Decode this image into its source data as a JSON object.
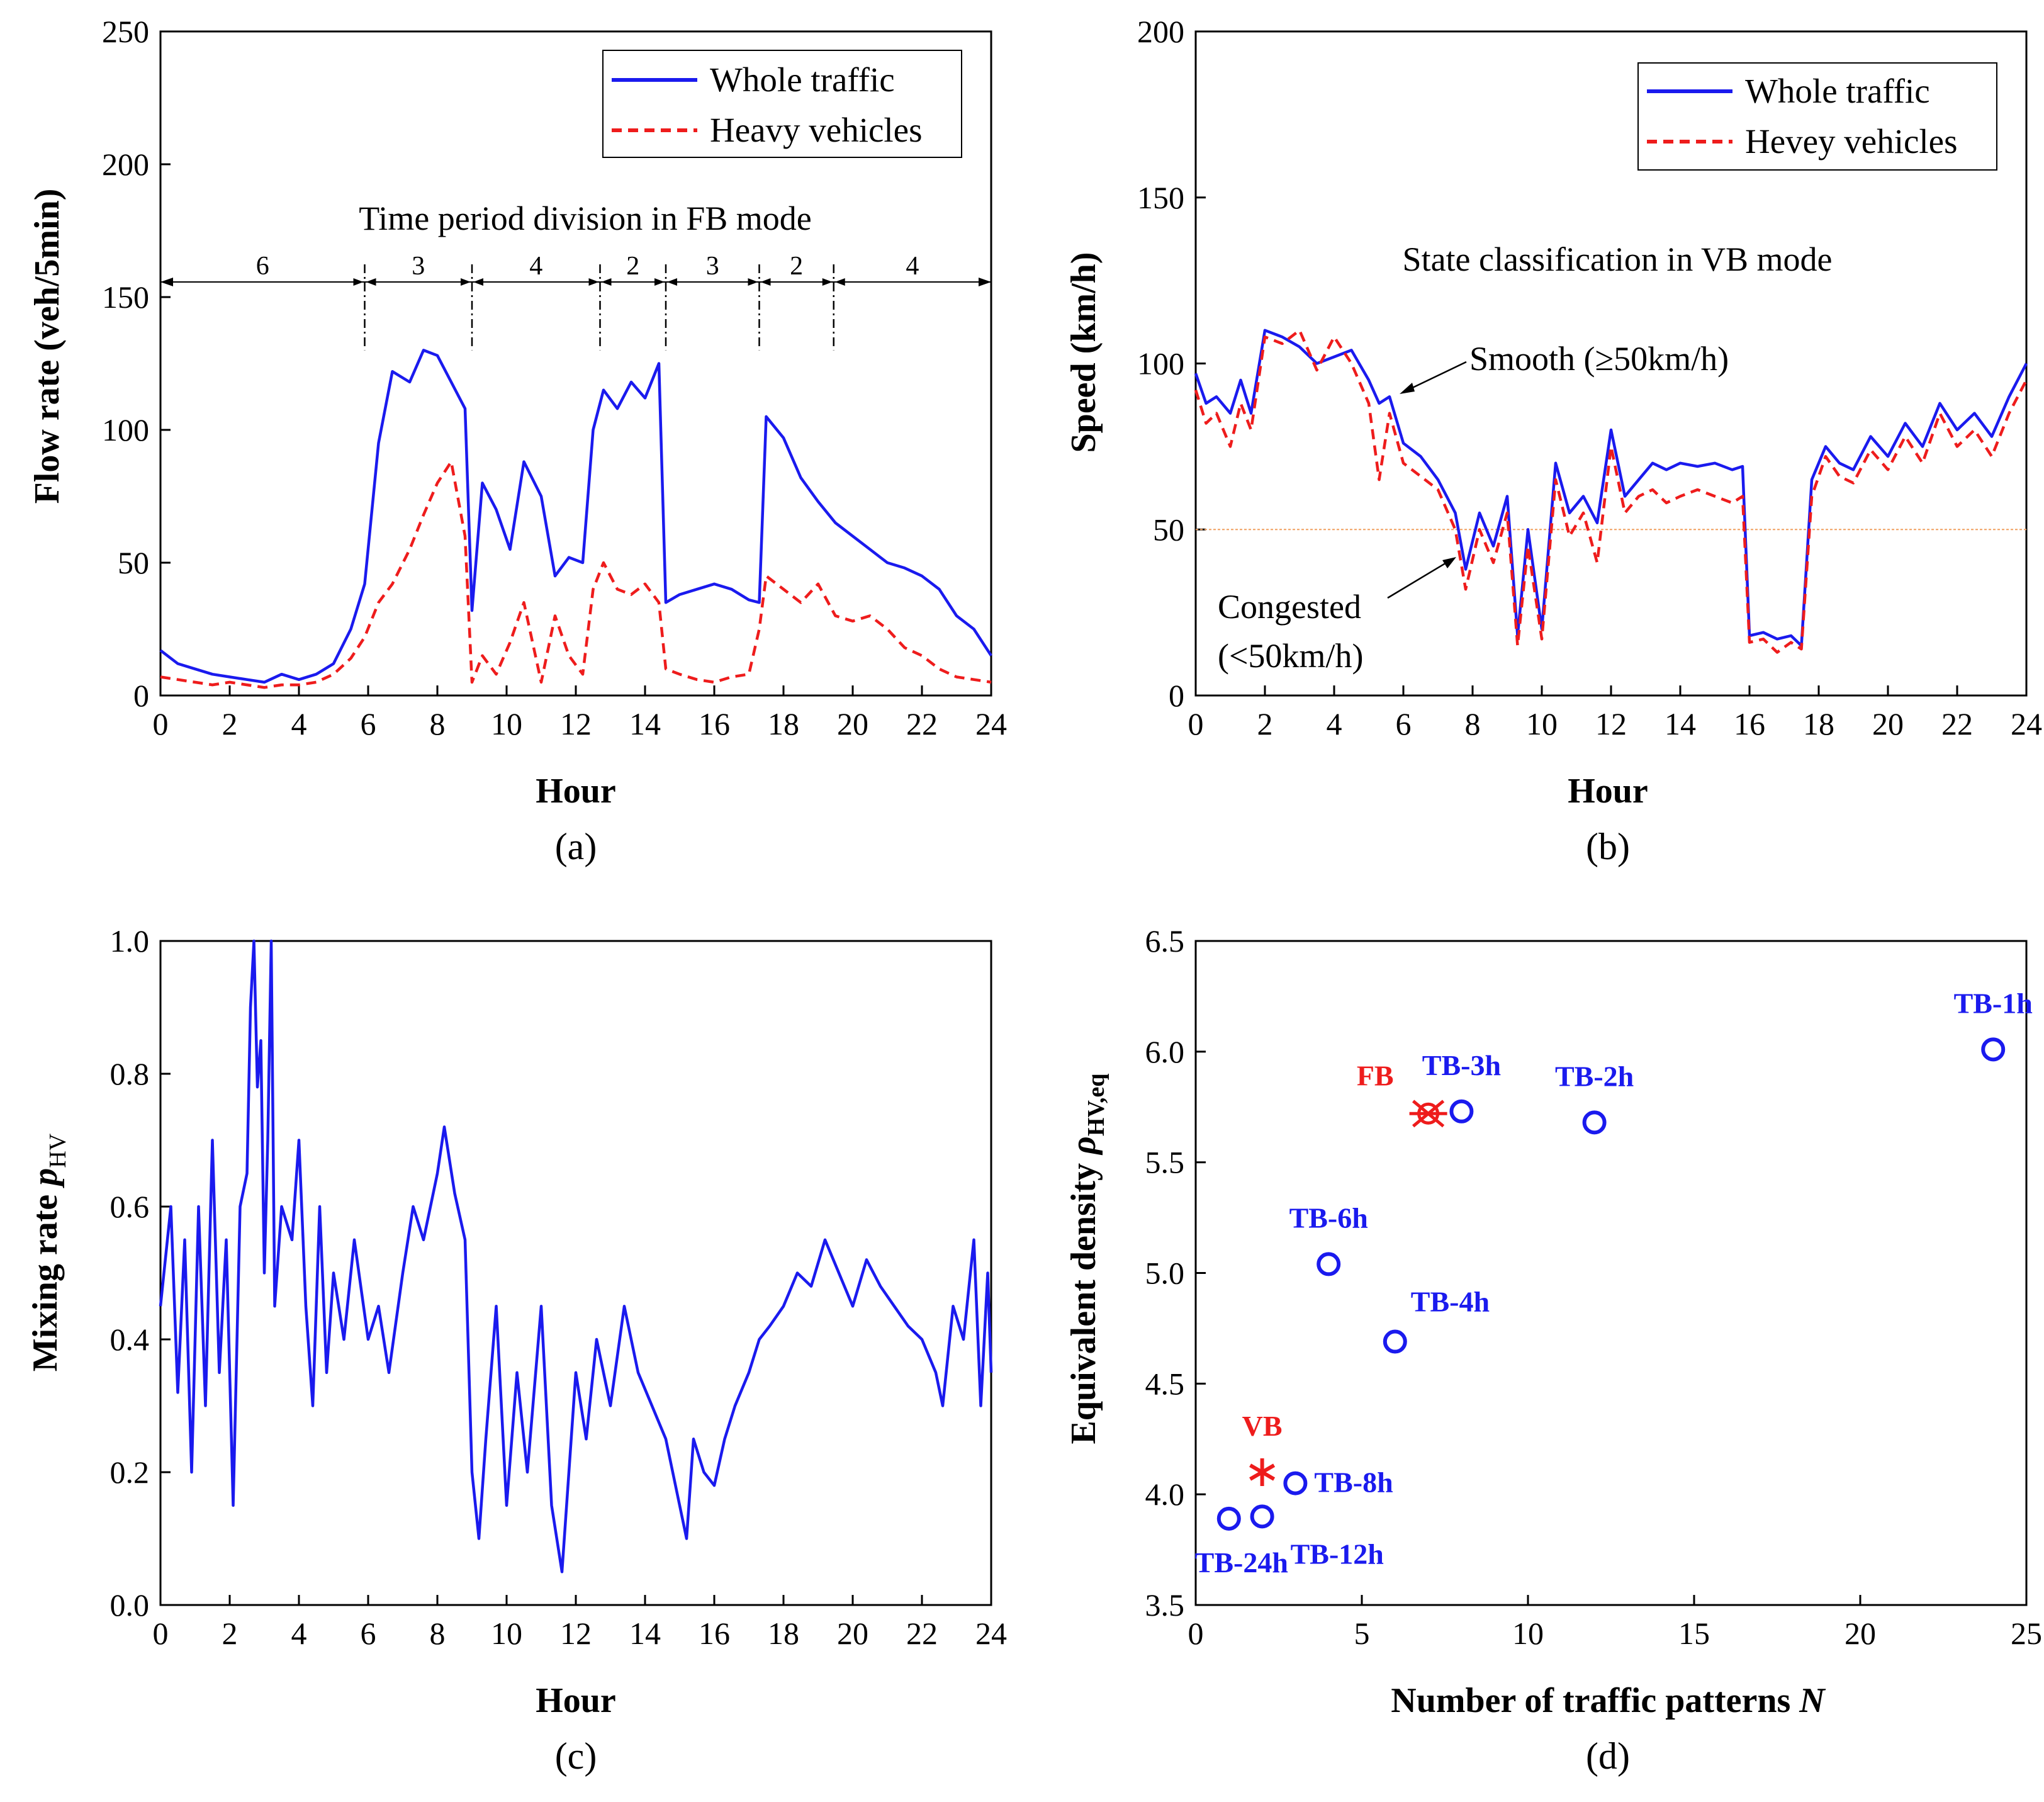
{
  "colors": {
    "blue": "#1a1aee",
    "red": "#ee1c1c",
    "threshold": "#f0a060",
    "axis": "#000000"
  },
  "chart_data": [
    {
      "id": "a",
      "type": "line",
      "caption": "(a)",
      "xlabel": "Hour",
      "ylabel": "Flow rate (veh/5min)",
      "xlim": [
        0,
        24
      ],
      "ylim": [
        0,
        250
      ],
      "xticks": [
        0,
        2,
        4,
        6,
        8,
        10,
        12,
        14,
        16,
        18,
        20,
        22,
        24
      ],
      "yticks": [
        0,
        50,
        100,
        150,
        200,
        250
      ],
      "legend": [
        "Whole traffic",
        "Heavy vehicles"
      ],
      "legend_position": "top-right",
      "annotation_title": "Time period division in FB mode",
      "period_boundaries_hour": [
        0,
        5.9,
        9.0,
        12.7,
        14.6,
        17.3,
        19.45,
        24
      ],
      "period_labels": [
        "6",
        "3",
        "4",
        "2",
        "3",
        "2",
        "4"
      ],
      "series": [
        {
          "name": "Whole traffic",
          "style": "solid",
          "x": [
            0,
            0.5,
            1,
            1.5,
            2,
            2.5,
            3,
            3.5,
            4,
            4.5,
            5,
            5.5,
            5.9,
            6.3,
            6.7,
            7.2,
            7.6,
            8.0,
            8.4,
            8.8,
            9.0,
            9.3,
            9.7,
            10.1,
            10.5,
            11.0,
            11.4,
            11.8,
            12.2,
            12.5,
            12.8,
            13.2,
            13.6,
            14.0,
            14.4,
            14.6,
            15.0,
            15.5,
            16.0,
            16.5,
            17.0,
            17.3,
            17.5,
            18.0,
            18.5,
            19.0,
            19.5,
            20.0,
            20.5,
            21.0,
            21.5,
            22.0,
            22.5,
            23.0,
            23.5,
            24
          ],
          "y": [
            17,
            12,
            10,
            8,
            7,
            6,
            5,
            8,
            6,
            8,
            12,
            25,
            42,
            95,
            122,
            118,
            130,
            128,
            118,
            108,
            32,
            80,
            70,
            55,
            88,
            75,
            45,
            52,
            50,
            100,
            115,
            108,
            118,
            112,
            125,
            35,
            38,
            40,
            42,
            40,
            36,
            35,
            105,
            97,
            82,
            73,
            65,
            60,
            55,
            50,
            48,
            45,
            40,
            30,
            25,
            15
          ]
        },
        {
          "name": "Heavy vehicles",
          "style": "dashed",
          "x": [
            0,
            0.5,
            1,
            1.5,
            2,
            2.5,
            3,
            3.5,
            4,
            4.5,
            5,
            5.5,
            5.9,
            6.3,
            6.7,
            7.2,
            7.6,
            8.0,
            8.4,
            8.8,
            9.0,
            9.3,
            9.7,
            10.1,
            10.5,
            11.0,
            11.4,
            11.8,
            12.2,
            12.5,
            12.8,
            13.2,
            13.6,
            14.0,
            14.4,
            14.6,
            15.0,
            15.5,
            16.0,
            16.5,
            17.0,
            17.3,
            17.5,
            18.0,
            18.5,
            19.0,
            19.5,
            20.0,
            20.5,
            21.0,
            21.5,
            22.0,
            22.5,
            23.0,
            23.5,
            24
          ],
          "y": [
            7,
            6,
            5,
            4,
            5,
            4,
            3,
            4,
            4,
            5,
            8,
            14,
            22,
            35,
            42,
            55,
            68,
            80,
            88,
            60,
            5,
            15,
            8,
            20,
            35,
            5,
            30,
            15,
            8,
            40,
            50,
            40,
            38,
            42,
            35,
            10,
            8,
            6,
            5,
            7,
            8,
            25,
            45,
            40,
            35,
            42,
            30,
            28,
            30,
            25,
            18,
            15,
            10,
            7,
            6,
            5
          ]
        }
      ]
    },
    {
      "id": "b",
      "type": "line",
      "caption": "(b)",
      "xlabel": "Hour",
      "ylabel": "Speed (km/h)",
      "xlim": [
        0,
        24
      ],
      "ylim": [
        0,
        200
      ],
      "xticks": [
        0,
        2,
        4,
        6,
        8,
        10,
        12,
        14,
        16,
        18,
        20,
        22,
        24
      ],
      "yticks": [
        0,
        50,
        100,
        150,
        200
      ],
      "legend": [
        "Whole traffic",
        "Hevey vehicles"
      ],
      "legend_position": "top-right",
      "annotation_title": "State classification in VB mode",
      "annotation_smooth": "Smooth (≥50km/h)",
      "annotation_congested_line1": "Congested",
      "annotation_congested_line2": "(<50km/h)",
      "threshold": 50,
      "series": [
        {
          "name": "Whole traffic",
          "style": "solid",
          "x": [
            0,
            0.3,
            0.6,
            1.0,
            1.3,
            1.6,
            2.0,
            2.5,
            3.0,
            3.5,
            4.0,
            4.5,
            5.0,
            5.3,
            5.6,
            6.0,
            6.5,
            7.0,
            7.5,
            7.8,
            8.2,
            8.6,
            9.0,
            9.3,
            9.6,
            10.0,
            10.4,
            10.8,
            11.2,
            11.6,
            12.0,
            12.4,
            12.8,
            13.2,
            13.6,
            14.0,
            14.5,
            15.0,
            15.5,
            15.8,
            16.0,
            16.4,
            16.8,
            17.2,
            17.5,
            17.8,
            18.2,
            18.6,
            19.0,
            19.5,
            20.0,
            20.5,
            21.0,
            21.5,
            22.0,
            22.5,
            23.0,
            23.5,
            24
          ],
          "y": [
            97,
            88,
            90,
            85,
            95,
            85,
            110,
            108,
            105,
            100,
            102,
            104,
            95,
            88,
            90,
            76,
            72,
            65,
            55,
            38,
            55,
            45,
            60,
            18,
            50,
            20,
            70,
            55,
            60,
            52,
            80,
            60,
            65,
            70,
            68,
            70,
            69,
            70,
            68,
            69,
            18,
            19,
            17,
            18,
            15,
            65,
            75,
            70,
            68,
            78,
            72,
            82,
            75,
            88,
            80,
            85,
            78,
            90,
            100
          ]
        },
        {
          "name": "Hevey vehicles",
          "style": "dashed",
          "x": [
            0,
            0.3,
            0.6,
            1.0,
            1.3,
            1.6,
            2.0,
            2.5,
            3.0,
            3.5,
            4.0,
            4.5,
            5.0,
            5.3,
            5.6,
            6.0,
            6.5,
            7.0,
            7.5,
            7.8,
            8.2,
            8.6,
            9.0,
            9.3,
            9.6,
            10.0,
            10.4,
            10.8,
            11.2,
            11.6,
            12.0,
            12.4,
            12.8,
            13.2,
            13.6,
            14.0,
            14.5,
            15.0,
            15.5,
            15.8,
            16.0,
            16.4,
            16.8,
            17.2,
            17.5,
            17.8,
            18.2,
            18.6,
            19.0,
            19.5,
            20.0,
            20.5,
            21.0,
            21.5,
            22.0,
            22.5,
            23.0,
            23.5,
            24
          ],
          "y": [
            92,
            82,
            85,
            75,
            88,
            80,
            108,
            106,
            110,
            98,
            108,
            100,
            88,
            65,
            85,
            70,
            66,
            62,
            50,
            32,
            50,
            40,
            55,
            15,
            45,
            17,
            65,
            48,
            55,
            40,
            75,
            55,
            60,
            62,
            58,
            60,
            62,
            60,
            58,
            60,
            16,
            17,
            13,
            16,
            14,
            60,
            72,
            66,
            64,
            74,
            68,
            78,
            70,
            85,
            75,
            80,
            72,
            85,
            95
          ]
        }
      ]
    },
    {
      "id": "c",
      "type": "line",
      "caption": "(c)",
      "xlabel": "Hour",
      "ylabel_main": "Mixing rate ",
      "ylabel_var": "p",
      "ylabel_sub": "HV",
      "xlim": [
        0,
        24
      ],
      "ylim": [
        0,
        1.0
      ],
      "xticks": [
        0,
        2,
        4,
        6,
        8,
        10,
        12,
        14,
        16,
        18,
        20,
        22,
        24
      ],
      "yticks": [
        0.0,
        0.2,
        0.4,
        0.6,
        0.8,
        1.0
      ],
      "ytick_labels": [
        "0.0",
        "0.2",
        "0.4",
        "0.6",
        "0.8",
        "1.0"
      ],
      "series": [
        {
          "name": "Mixing rate",
          "style": "solid",
          "x": [
            0,
            0.3,
            0.5,
            0.7,
            0.9,
            1.1,
            1.3,
            1.5,
            1.7,
            1.9,
            2.1,
            2.3,
            2.5,
            2.6,
            2.7,
            2.8,
            2.9,
            3.0,
            3.1,
            3.2,
            3.3,
            3.5,
            3.8,
            4.0,
            4.2,
            4.4,
            4.6,
            4.8,
            5.0,
            5.3,
            5.6,
            6.0,
            6.3,
            6.6,
            7.0,
            7.3,
            7.6,
            8.0,
            8.2,
            8.5,
            8.8,
            9.0,
            9.2,
            9.4,
            9.7,
            10.0,
            10.3,
            10.6,
            11.0,
            11.3,
            11.6,
            11.8,
            12.0,
            12.3,
            12.6,
            13.0,
            13.4,
            13.8,
            14.2,
            14.6,
            15.0,
            15.2,
            15.4,
            15.7,
            16.0,
            16.3,
            16.6,
            17.0,
            17.3,
            17.6,
            18.0,
            18.4,
            18.8,
            19.2,
            19.6,
            20.0,
            20.4,
            20.8,
            21.2,
            21.6,
            22.0,
            22.4,
            22.6,
            22.9,
            23.2,
            23.5,
            23.7,
            23.9,
            24
          ],
          "y": [
            0.45,
            0.6,
            0.32,
            0.55,
            0.2,
            0.6,
            0.3,
            0.7,
            0.35,
            0.55,
            0.15,
            0.6,
            0.65,
            0.9,
            1.0,
            0.78,
            0.85,
            0.5,
            0.7,
            1.0,
            0.45,
            0.6,
            0.55,
            0.7,
            0.45,
            0.3,
            0.6,
            0.35,
            0.5,
            0.4,
            0.55,
            0.4,
            0.45,
            0.35,
            0.5,
            0.6,
            0.55,
            0.65,
            0.72,
            0.62,
            0.55,
            0.2,
            0.1,
            0.25,
            0.45,
            0.15,
            0.35,
            0.2,
            0.45,
            0.15,
            0.05,
            0.2,
            0.35,
            0.25,
            0.4,
            0.3,
            0.45,
            0.35,
            0.3,
            0.25,
            0.15,
            0.1,
            0.25,
            0.2,
            0.18,
            0.25,
            0.3,
            0.35,
            0.4,
            0.42,
            0.45,
            0.5,
            0.48,
            0.55,
            0.5,
            0.45,
            0.52,
            0.48,
            0.45,
            0.42,
            0.4,
            0.35,
            0.3,
            0.45,
            0.4,
            0.55,
            0.3,
            0.5,
            0.35
          ]
        }
      ]
    },
    {
      "id": "d",
      "type": "scatter",
      "caption": "(d)",
      "xlabel_main": "Number of traffic patterns ",
      "xlabel_var": "N",
      "ylabel_main": "Equivalent density ",
      "ylabel_var": "ρ",
      "ylabel_sub": "HV,eq",
      "xlim": [
        0,
        25
      ],
      "ylim": [
        3.5,
        6.5
      ],
      "xticks": [
        0,
        5,
        10,
        15,
        20,
        25
      ],
      "yticks": [
        3.5,
        4.0,
        4.5,
        5.0,
        5.5,
        6.0,
        6.5
      ],
      "ytick_labels": [
        "3.5",
        "4.0",
        "4.5",
        "5.0",
        "5.5",
        "6.0",
        "6.5"
      ],
      "points": [
        {
          "label": "TB-1h",
          "x": 24,
          "y": 6.01,
          "marker": "circle",
          "color": "blue",
          "label_pos": "above"
        },
        {
          "label": "TB-2h",
          "x": 12,
          "y": 5.68,
          "marker": "circle",
          "color": "blue",
          "label_pos": "above"
        },
        {
          "label": "TB-3h",
          "x": 8,
          "y": 5.73,
          "marker": "circle",
          "color": "blue",
          "label_pos": "above"
        },
        {
          "label": "TB-4h",
          "x": 6,
          "y": 4.69,
          "marker": "circle",
          "color": "blue",
          "label_pos": "upper-right"
        },
        {
          "label": "TB-6h",
          "x": 4,
          "y": 5.04,
          "marker": "circle",
          "color": "blue",
          "label_pos": "above"
        },
        {
          "label": "TB-8h",
          "x": 3,
          "y": 4.05,
          "marker": "circle",
          "color": "blue",
          "label_pos": "right"
        },
        {
          "label": "TB-12h",
          "x": 2,
          "y": 3.9,
          "marker": "circle",
          "color": "blue",
          "label_pos": "lower-right"
        },
        {
          "label": "TB-24h",
          "x": 1,
          "y": 3.89,
          "marker": "circle",
          "color": "blue",
          "label_pos": "below"
        },
        {
          "label": "FB",
          "x": 7,
          "y": 5.72,
          "marker": "cross",
          "color": "red",
          "label_pos": "upper-left"
        },
        {
          "label": "VB",
          "x": 2,
          "y": 4.1,
          "marker": "star",
          "color": "red",
          "label_pos": "above"
        }
      ]
    }
  ]
}
